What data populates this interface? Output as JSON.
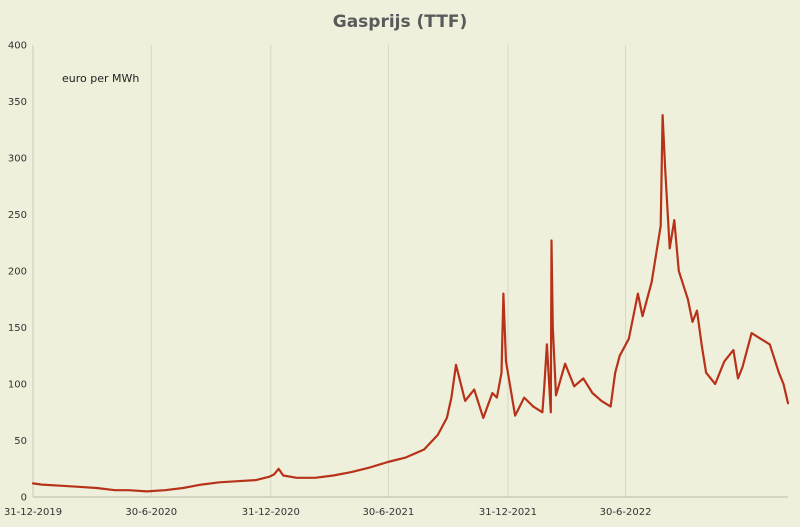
{
  "chart_data": {
    "type": "line",
    "title": "Gasprijs (TTF)",
    "annotation": "euro per MWh",
    "xlabel": "",
    "ylabel": "",
    "ylim": [
      0,
      400
    ],
    "yticks": [
      0,
      50,
      100,
      150,
      200,
      250,
      300,
      350,
      400
    ],
    "xlim": [
      "2019-12-31",
      "2023-03-07"
    ],
    "xticks": [
      {
        "date": "2019-12-31",
        "label": "31-12-2019"
      },
      {
        "date": "2020-06-30",
        "label": "30-6-2020"
      },
      {
        "date": "2020-12-31",
        "label": "31-12-2020"
      },
      {
        "date": "2021-06-30",
        "label": "30-6-2021"
      },
      {
        "date": "2021-12-31",
        "label": "31-12-2021"
      },
      {
        "date": "2022-06-30",
        "label": "30-6-2022"
      }
    ],
    "grid": {
      "vertical": true,
      "horizontal": false
    },
    "colors": {
      "background": "#eef0dc",
      "line": "#b8321a",
      "grid": "#d6d8c6",
      "title": "#5a5a5a"
    },
    "series": [
      {
        "x": [
          "2019-12-31",
          "2020-01-14",
          "2020-02-11",
          "2020-03-10",
          "2020-04-07",
          "2020-05-05",
          "2020-05-26",
          "2020-06-23",
          "2020-07-21",
          "2020-08-18",
          "2020-09-15",
          "2020-10-13",
          "2020-11-10",
          "2020-12-08",
          "2020-12-29",
          "2021-01-05",
          "2021-01-12",
          "2021-01-19",
          "2021-02-09",
          "2021-03-09",
          "2021-04-06",
          "2021-05-04",
          "2021-06-01",
          "2021-06-29",
          "2021-07-27",
          "2021-08-24",
          "2021-09-14",
          "2021-09-28",
          "2021-10-05",
          "2021-10-12",
          "2021-10-26",
          "2021-11-09",
          "2021-11-23",
          "2021-12-07",
          "2021-12-14",
          "2021-12-21",
          "2021-12-24",
          "2021-12-28",
          "2022-01-11",
          "2022-01-25",
          "2022-02-08",
          "2022-02-22",
          "2022-02-25",
          "2022-03-01",
          "2022-03-07",
          "2022-03-08",
          "2022-03-10",
          "2022-03-15",
          "2022-03-29",
          "2022-04-12",
          "2022-04-26",
          "2022-05-10",
          "2022-05-24",
          "2022-06-07",
          "2022-06-14",
          "2022-06-21",
          "2022-07-05",
          "2022-07-19",
          "2022-07-26",
          "2022-08-09",
          "2022-08-23",
          "2022-08-26",
          "2022-08-30",
          "2022-09-06",
          "2022-09-13",
          "2022-09-20",
          "2022-10-04",
          "2022-10-11",
          "2022-10-18",
          "2022-10-25",
          "2022-11-01",
          "2022-11-15",
          "2022-11-29",
          "2022-12-13",
          "2022-12-20",
          "2022-12-27",
          "2023-01-10",
          "2023-01-24",
          "2023-02-07",
          "2023-02-21",
          "2023-02-28",
          "2023-03-07"
        ],
        "y": [
          12,
          11,
          10,
          9,
          8,
          6,
          6,
          5,
          6,
          8,
          11,
          13,
          14,
          15,
          18,
          20,
          25,
          19,
          17,
          17,
          19,
          22,
          26,
          31,
          35,
          42,
          55,
          70,
          88,
          117,
          85,
          95,
          70,
          92,
          88,
          110,
          180,
          120,
          72,
          88,
          80,
          75,
          98,
          135,
          75,
          227,
          150,
          90,
          118,
          98,
          105,
          92,
          85,
          80,
          110,
          125,
          140,
          180,
          160,
          190,
          240,
          338,
          290,
          220,
          245,
          200,
          175,
          155,
          165,
          135,
          110,
          100,
          120,
          130,
          105,
          115,
          145,
          140,
          135,
          110,
          100,
          83
        ]
      }
    ]
  }
}
